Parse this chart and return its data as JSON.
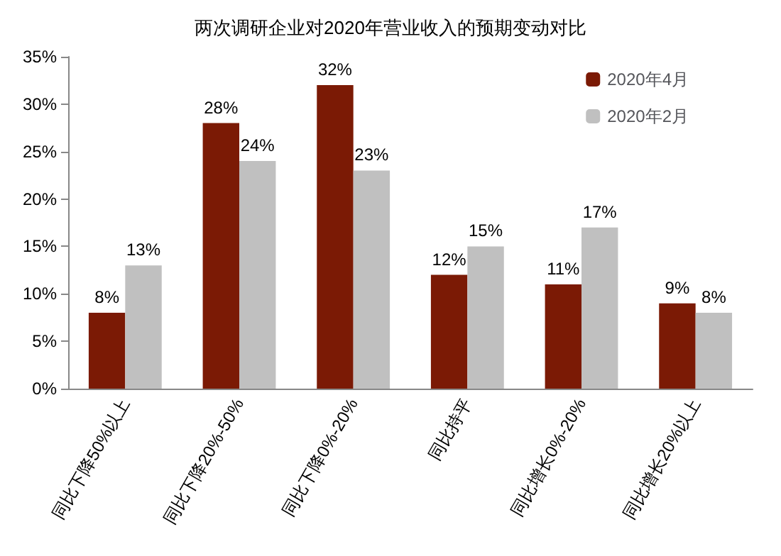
{
  "chart_data": {
    "type": "bar",
    "title": "两次调研企业对2020年营业收入的预期变动对比",
    "categories": [
      "同比下降50%以上",
      "同比下降20%-50%",
      "同比下降0%-20%",
      "同比持平",
      "同比增长0%-20%",
      "同比增长20%以上"
    ],
    "series": [
      {
        "name": "2020年4月",
        "color": "#7b1a05",
        "values": [
          8,
          28,
          32,
          12,
          11,
          9
        ],
        "value_labels": [
          "8%",
          "28%",
          "32%",
          "12%",
          "11%",
          "9%"
        ]
      },
      {
        "name": "2020年2月",
        "color": "#c0c0c0",
        "values": [
          13,
          24,
          23,
          15,
          17,
          8
        ],
        "value_labels": [
          "13%",
          "24%",
          "23%",
          "15%",
          "17%",
          "8%"
        ]
      }
    ],
    "ylim": [
      0,
      35
    ],
    "yticks": [
      {
        "value": 0,
        "label": "0%"
      },
      {
        "value": 5,
        "label": "5%"
      },
      {
        "value": 10,
        "label": "10%"
      },
      {
        "value": 15,
        "label": "15%"
      },
      {
        "value": 20,
        "label": "20%"
      },
      {
        "value": 25,
        "label": "25%"
      },
      {
        "value": 30,
        "label": "30%"
      },
      {
        "value": 35,
        "label": "35%"
      }
    ],
    "grid": false,
    "legend": "top right"
  }
}
